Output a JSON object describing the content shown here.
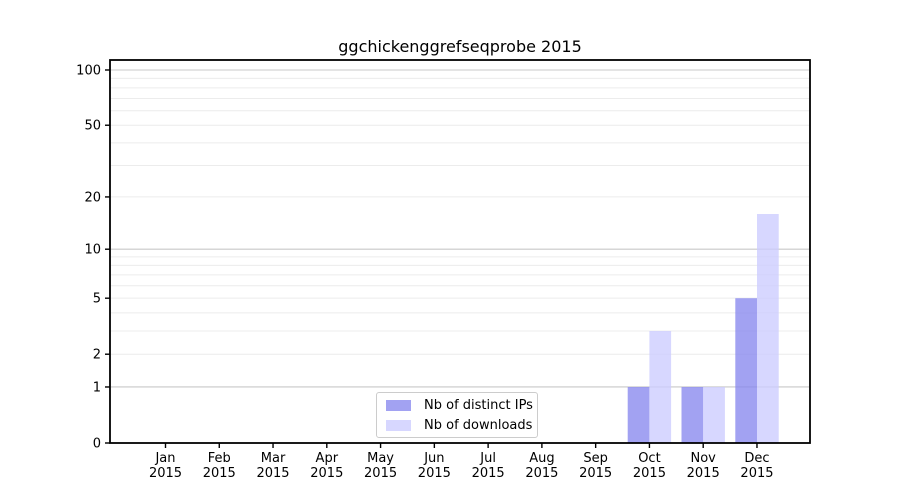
{
  "chart_data": {
    "type": "bar",
    "title": "ggchickenggrefseqprobe 2015",
    "categories": [
      "Jan",
      "Feb",
      "Mar",
      "Apr",
      "May",
      "Jun",
      "Jul",
      "Aug",
      "Sep",
      "Oct",
      "Nov",
      "Dec"
    ],
    "year_label": "2015",
    "series": [
      {
        "name": "Nb of distinct IPs",
        "color": "#8888ee",
        "values": [
          0,
          0,
          0,
          0,
          0,
          0,
          0,
          0,
          0,
          1,
          1,
          5
        ]
      },
      {
        "name": "Nb of downloads",
        "color": "#ccccff",
        "values": [
          0,
          0,
          0,
          0,
          0,
          0,
          0,
          0,
          0,
          3,
          1,
          16
        ]
      }
    ],
    "bar_opacity": 0.78,
    "yscale": "log1p",
    "ylim": [
      0,
      113
    ],
    "yticks": [
      0,
      1,
      2,
      5,
      10,
      20,
      50,
      100
    ],
    "grid": {
      "major_values": [
        1,
        10,
        100
      ],
      "minor_values": [
        2,
        3,
        4,
        5,
        6,
        7,
        8,
        9,
        20,
        30,
        40,
        50,
        60,
        70,
        80,
        90
      ],
      "major_color": "#c8c8c8",
      "minor_color": "#ececec"
    },
    "axis_color": "#000000",
    "background_color": "#ffffff",
    "legend_position": "lower center"
  }
}
